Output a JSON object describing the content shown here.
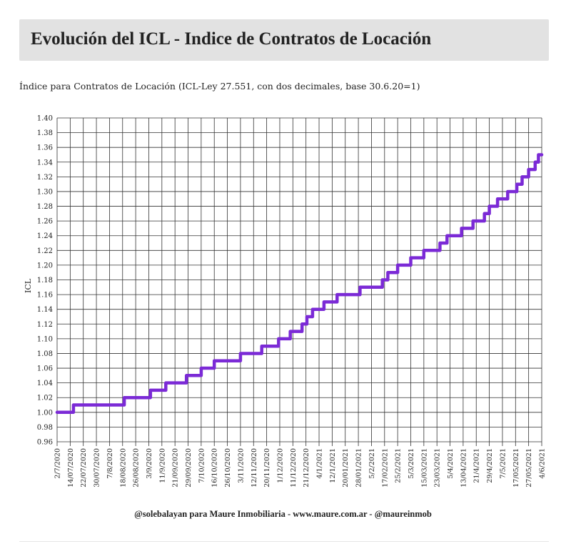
{
  "header": {
    "title": "Evolución del ICL - Indice de Contratos de Locación"
  },
  "subtitle": "Índice para Contratos de Locación (ICL-Ley 27.551, con dos decimales, base 30.6.20=1)",
  "footer": {
    "credit": "@solebalayan   para Maure Inmobiliaria - www.maure.com.ar - @maureinmob"
  },
  "colors": {
    "line": "#7b2ad6",
    "grid": "#333333"
  },
  "chart_data": {
    "type": "line",
    "ylabel": "ICL",
    "ylim": [
      0.96,
      1.4
    ],
    "y_ticks": [
      0.96,
      0.98,
      1.0,
      1.02,
      1.04,
      1.06,
      1.08,
      1.1,
      1.12,
      1.14,
      1.16,
      1.18,
      1.2,
      1.22,
      1.24,
      1.26,
      1.28,
      1.3,
      1.32,
      1.34,
      1.36,
      1.38,
      1.4
    ],
    "x_start": "2020-07-02",
    "x_end": "2021-06-04",
    "x_ticks": [
      {
        "date": "2020-07-02",
        "label": "2/7/2020"
      },
      {
        "date": "2020-07-14",
        "label": "14/07/2020"
      },
      {
        "date": "2020-07-22",
        "label": "22/07/2020"
      },
      {
        "date": "2020-07-30",
        "label": "30/07/2020"
      },
      {
        "date": "2020-08-07",
        "label": "7/8/2020"
      },
      {
        "date": "2020-08-18",
        "label": "18/08/2020"
      },
      {
        "date": "2020-08-26",
        "label": "26/08/2020"
      },
      {
        "date": "2020-09-03",
        "label": "3/9/2020"
      },
      {
        "date": "2020-09-11",
        "label": "11/9/2020"
      },
      {
        "date": "2020-09-21",
        "label": "21/09/2020"
      },
      {
        "date": "2020-09-29",
        "label": "29/09/2020"
      },
      {
        "date": "2020-10-07",
        "label": "7/10/2020"
      },
      {
        "date": "2020-10-16",
        "label": "16/10/2020"
      },
      {
        "date": "2020-10-26",
        "label": "26/10/2020"
      },
      {
        "date": "2020-11-03",
        "label": "3/11/2020"
      },
      {
        "date": "2020-11-12",
        "label": "12/11/2020"
      },
      {
        "date": "2020-11-20",
        "label": "20/11/2020"
      },
      {
        "date": "2020-12-01",
        "label": "1/12/2020"
      },
      {
        "date": "2020-12-11",
        "label": "11/12/2020"
      },
      {
        "date": "2020-12-21",
        "label": "21/12/2020"
      },
      {
        "date": "2021-01-04",
        "label": "4/1/2021"
      },
      {
        "date": "2021-01-12",
        "label": "12/1/2021"
      },
      {
        "date": "2021-01-20",
        "label": "20/01/2021"
      },
      {
        "date": "2021-01-28",
        "label": "28/01/2021"
      },
      {
        "date": "2021-02-05",
        "label": "5/2/2021"
      },
      {
        "date": "2021-02-17",
        "label": "17/02/2021"
      },
      {
        "date": "2021-02-25",
        "label": "25/2/2021"
      },
      {
        "date": "2021-03-05",
        "label": "5/3/2021"
      },
      {
        "date": "2021-03-15",
        "label": "15/03/2021"
      },
      {
        "date": "2021-03-23",
        "label": "23/03/2021"
      },
      {
        "date": "2021-04-05",
        "label": "5/4/2021"
      },
      {
        "date": "2021-04-13",
        "label": "13/04/2021"
      },
      {
        "date": "2021-04-21",
        "label": "21/4/2021"
      },
      {
        "date": "2021-04-29",
        "label": "29/4/2021"
      },
      {
        "date": "2021-05-07",
        "label": "7/5/2021"
      },
      {
        "date": "2021-05-17",
        "label": "17/05/2021"
      },
      {
        "date": "2021-05-27",
        "label": "27/05/2021"
      },
      {
        "date": "2021-06-04",
        "label": "4/6/2021"
      }
    ],
    "series": [
      {
        "step": true,
        "points": [
          [
            "2020-07-02",
            1.0
          ],
          [
            "2020-07-16",
            1.01
          ],
          [
            "2020-08-19",
            1.02
          ],
          [
            "2020-09-04",
            1.03
          ],
          [
            "2020-09-14",
            1.04
          ],
          [
            "2020-09-28",
            1.05
          ],
          [
            "2020-10-07",
            1.06
          ],
          [
            "2020-10-16",
            1.07
          ],
          [
            "2020-11-03",
            1.08
          ],
          [
            "2020-11-17",
            1.09
          ],
          [
            "2020-11-30",
            1.1
          ],
          [
            "2020-12-09",
            1.11
          ],
          [
            "2020-12-18",
            1.12
          ],
          [
            "2020-12-22",
            1.13
          ],
          [
            "2020-12-28",
            1.14
          ],
          [
            "2021-01-07",
            1.15
          ],
          [
            "2021-01-15",
            1.16
          ],
          [
            "2021-01-29",
            1.17
          ],
          [
            "2021-02-15",
            1.18
          ],
          [
            "2021-02-19",
            1.19
          ],
          [
            "2021-02-25",
            1.2
          ],
          [
            "2021-03-05",
            1.21
          ],
          [
            "2021-03-15",
            1.22
          ],
          [
            "2021-03-26",
            1.23
          ],
          [
            "2021-04-02",
            1.24
          ],
          [
            "2021-04-12",
            1.25
          ],
          [
            "2021-04-19",
            1.26
          ],
          [
            "2021-04-26",
            1.27
          ],
          [
            "2021-04-29",
            1.28
          ],
          [
            "2021-05-04",
            1.29
          ],
          [
            "2021-05-11",
            1.3
          ],
          [
            "2021-05-18",
            1.31
          ],
          [
            "2021-05-22",
            1.32
          ],
          [
            "2021-05-27",
            1.33
          ],
          [
            "2021-05-31",
            1.34
          ],
          [
            "2021-06-02",
            1.35
          ],
          [
            "2021-06-04",
            1.35
          ]
        ]
      }
    ],
    "grid": true
  }
}
